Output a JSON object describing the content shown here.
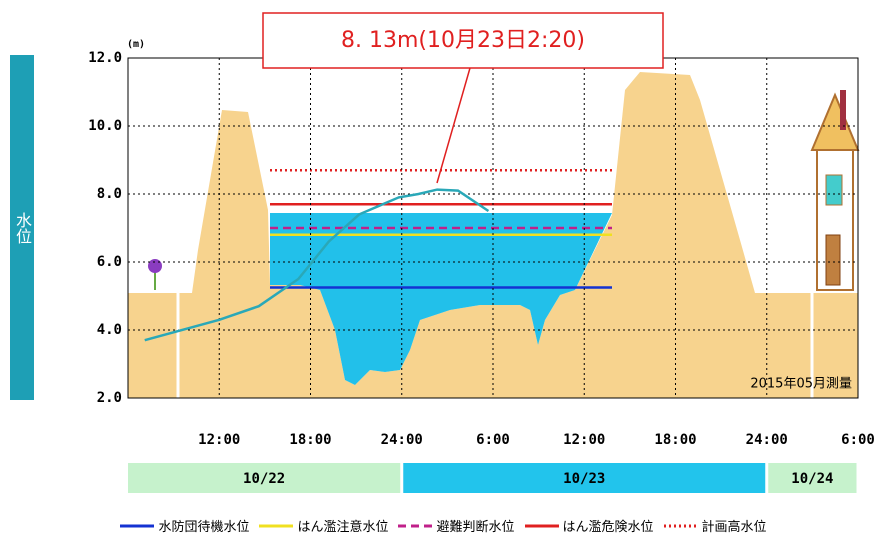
{
  "chart_data": {
    "type": "line",
    "annotation": "8. 13m(10月23日2:20)",
    "y_label": "水位",
    "y_unit": "(m)",
    "note": "2015年05月測量",
    "xlim": [
      6,
      54
    ],
    "xticks": [
      {
        "value": 12,
        "label": "12:00"
      },
      {
        "value": 18,
        "label": "18:00"
      },
      {
        "value": 24,
        "label": "24:00"
      },
      {
        "value": 30,
        "label": "6:00"
      },
      {
        "value": 36,
        "label": "12:00"
      },
      {
        "value": 42,
        "label": "18:00"
      },
      {
        "value": 48,
        "label": "24:00"
      },
      {
        "value": 54,
        "label": "6:00"
      }
    ],
    "ylim": [
      2,
      12
    ],
    "yticks": [
      {
        "value": 2,
        "label": "2.0"
      },
      {
        "value": 4,
        "label": "4.0"
      },
      {
        "value": 6,
        "label": "6.0"
      },
      {
        "value": 8,
        "label": "8.0"
      },
      {
        "value": 10,
        "label": "10.0"
      },
      {
        "value": 12,
        "label": "12.0"
      }
    ],
    "grid": true,
    "series": [
      {
        "color": "#2aa8b8",
        "x": [
          7.1,
          12,
          14.6,
          17.2,
          19.2,
          21.2,
          23.8,
          25.1,
          26.33,
          27.7,
          29.7
        ],
        "values": [
          3.7,
          4.3,
          4.7,
          5.5,
          6.6,
          7.4,
          7.9,
          8.0,
          8.13,
          8.1,
          7.5
        ]
      }
    ],
    "reference_lines": [
      {
        "name": "水防団待機水位",
        "value": 5.25,
        "color": "#1432d2",
        "style": "solid"
      },
      {
        "name": "はん濫注意水位",
        "value": 6.8,
        "color": "#f0e020",
        "style": "solid"
      },
      {
        "name": "避難判断水位",
        "value": 7.0,
        "color": "#c0208a",
        "style": "dashed"
      },
      {
        "name": "はん濫危険水位",
        "value": 7.7,
        "color": "#e02020",
        "style": "solid"
      },
      {
        "name": "計画高水位",
        "value": 8.7,
        "color": "#e02020",
        "style": "dotted"
      }
    ],
    "dates": [
      {
        "label": "10/22",
        "color": "#c6f2cc"
      },
      {
        "label": "10/23",
        "color": "#22c4ec"
      },
      {
        "label": "10/24",
        "color": "#c6f2cc"
      }
    ]
  }
}
